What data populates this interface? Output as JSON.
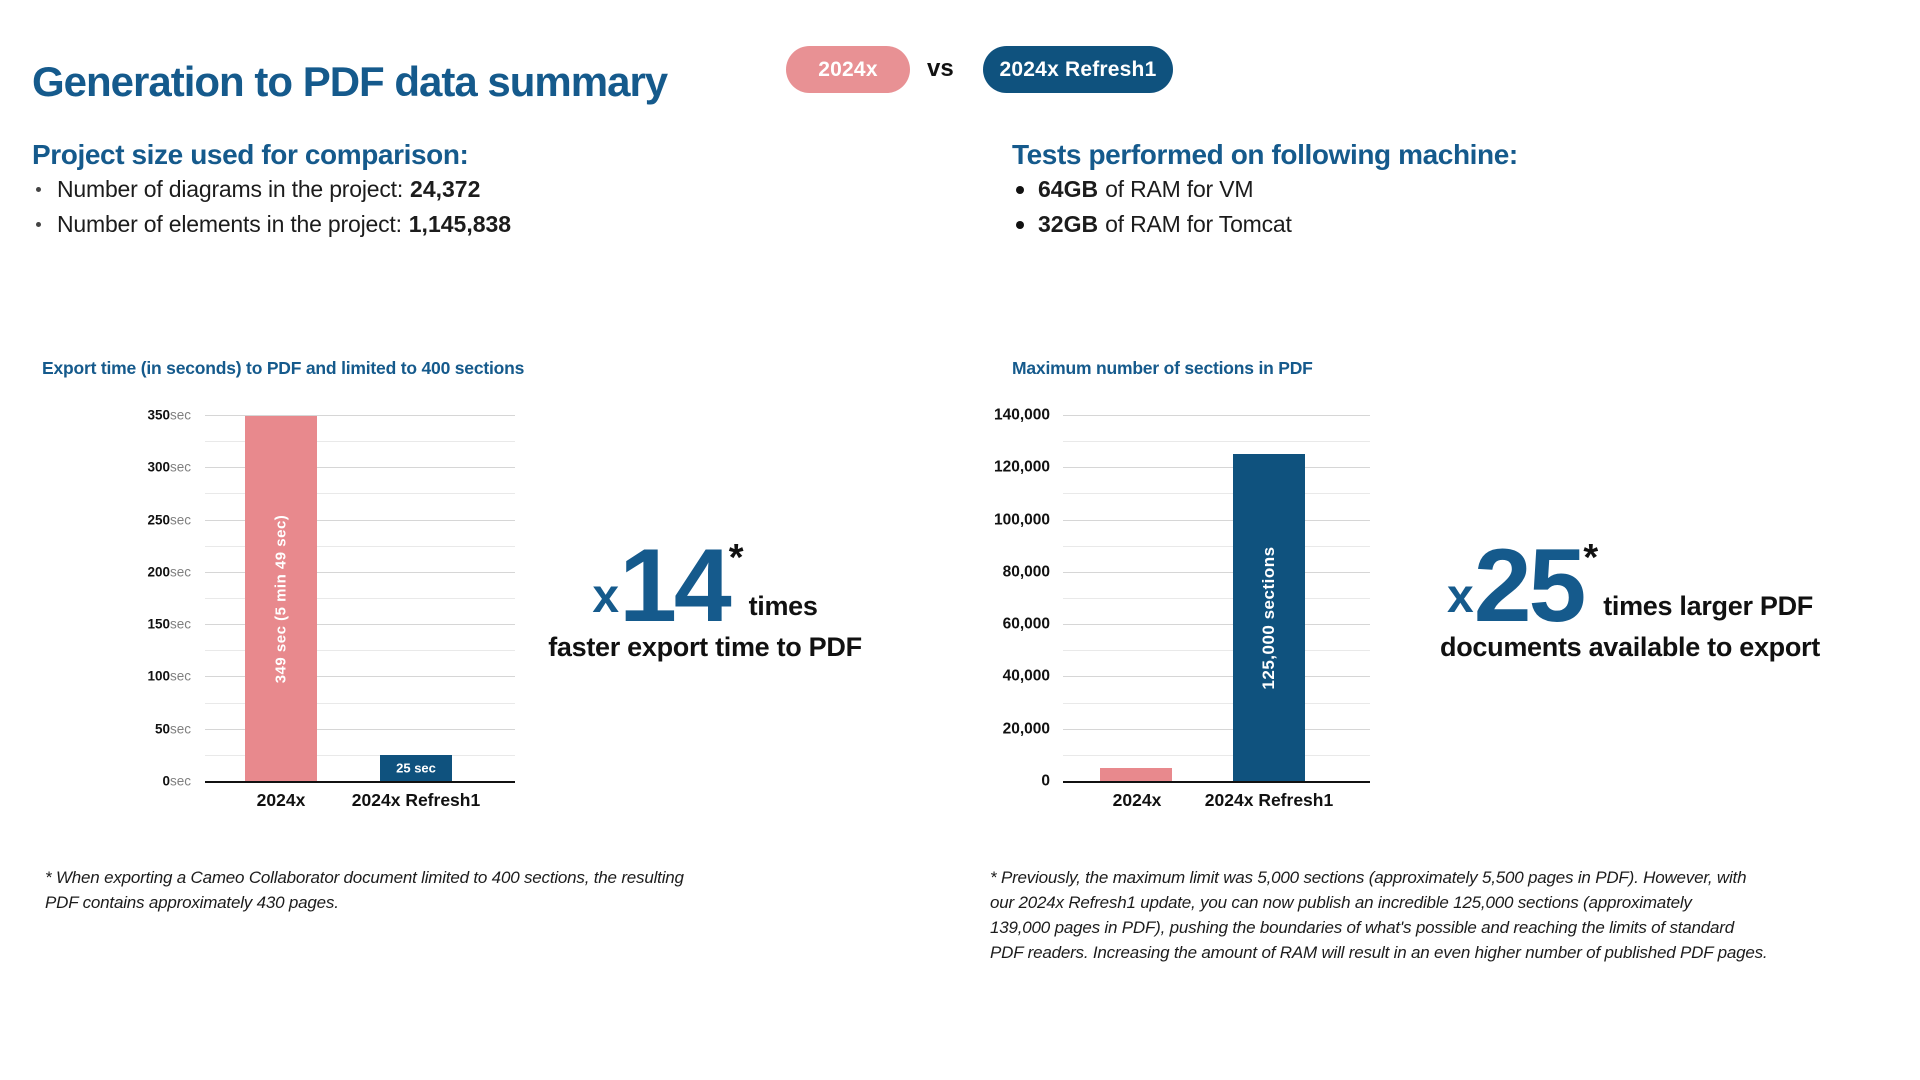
{
  "header": {
    "title": "Generation to PDF data summary",
    "badge_old": {
      "label": "2024x",
      "color": "#E89194"
    },
    "vs_label": "vs",
    "badge_new": {
      "label": "2024x Refresh1",
      "color": "#0F527E"
    }
  },
  "project_size": {
    "heading": "Project size used for comparison:",
    "items": [
      {
        "text": "Number of diagrams in the project:",
        "value": "24,372"
      },
      {
        "text": "Number of elements in the project:",
        "value": "1,145,838"
      }
    ]
  },
  "machine": {
    "heading": "Tests performed on following machine:",
    "items": [
      {
        "value": "64GB",
        "text": "of RAM for VM"
      },
      {
        "value": "32GB",
        "text": "of RAM for Tomcat"
      }
    ]
  },
  "chart_data": [
    {
      "type": "bar",
      "title": "Export time (in seconds) to PDF and limited to 400 sections",
      "categories": [
        "2024x",
        "2024x Refresh1"
      ],
      "values": [
        349,
        25
      ],
      "bar_labels": [
        "349 sec (5 min 49 sec)",
        "25 sec"
      ],
      "bar_colors": [
        "#E8898D",
        "#0F527E"
      ],
      "ylim": [
        0,
        350
      ],
      "ytick_unit": "sec",
      "yticks": [
        "350",
        "300",
        "250",
        "200",
        "150",
        "100",
        "50",
        "0"
      ],
      "grid": "major+minor horizontal",
      "legend": "none"
    },
    {
      "type": "bar",
      "title": "Maximum number of sections in PDF",
      "categories": [
        "2024x",
        "2024x Refresh1"
      ],
      "values": [
        5000,
        125000
      ],
      "bar_labels": [
        "",
        "125,000 sections"
      ],
      "bar_colors": [
        "#E8898D",
        "#0F527E"
      ],
      "ylim": [
        0,
        140000
      ],
      "ytick_unit": "",
      "yticks": [
        "140,000",
        "120,000",
        "100,000",
        "80,000",
        "60,000",
        "40,000",
        "20,000",
        "0"
      ],
      "grid": "major+minor horizontal",
      "legend": "none"
    }
  ],
  "stat_left": {
    "multiplier_prefix": "x",
    "multiplier_number": "14",
    "asterisk": "*",
    "tail": "times",
    "line2": "faster export time to PDF"
  },
  "stat_right": {
    "multiplier_prefix": "x",
    "multiplier_number": "25",
    "asterisk": "*",
    "tail": "times larger PDF",
    "line2": "documents available to export"
  },
  "footnotes": {
    "left": "* When exporting a Cameo Collaborator document limited to 400 sections, the resulting\nPDF contains approximately 430 pages.",
    "right": "* Previously, the maximum limit was 5,000 sections (approximately 5,500 pages in PDF). However, with\nour 2024x Refresh1 update, you can now publish an incredible 125,000 sections (approximately\n139,000 pages in PDF), pushing the boundaries of what's possible and reaching the limits of standard\nPDF readers. Increasing the amount of RAM will result in an even higher number of published PDF pages."
  },
  "colors": {
    "heading_blue": "#155A8C",
    "accent_blue": "#0F527E",
    "accent_pink": "#E8898D",
    "badge_pink": "#E89194",
    "gridline_major": "#D6D6D6",
    "gridline_minor": "#E9E9E9",
    "tick_unit_gray": "#7F7F7F"
  }
}
